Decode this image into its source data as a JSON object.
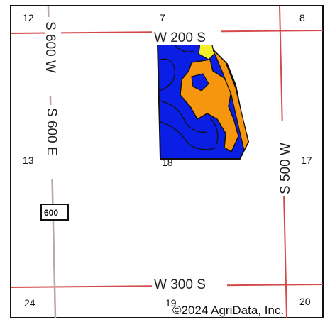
{
  "map": {
    "colors": {
      "frame": "#111111",
      "road": "#d44a4a",
      "field_blue": "#0a1ee6",
      "field_orange": "#f5960e",
      "field_yellow": "#f4ef2a",
      "soil_line": "#111111"
    },
    "roads": {
      "north": "W 200 S",
      "south": "W 300 S",
      "west_upper": "S 600 W",
      "west_lower": "S 600 E",
      "east": "S 500 W"
    },
    "sections": {
      "s12": "12",
      "s7": "7",
      "s8": "8",
      "s13": "13",
      "s18": "18",
      "s17": "17",
      "s24": "24",
      "s19": "19",
      "s20": "20"
    },
    "highway_shield": "600",
    "copyright": "©2024 AgriData, Inc."
  }
}
